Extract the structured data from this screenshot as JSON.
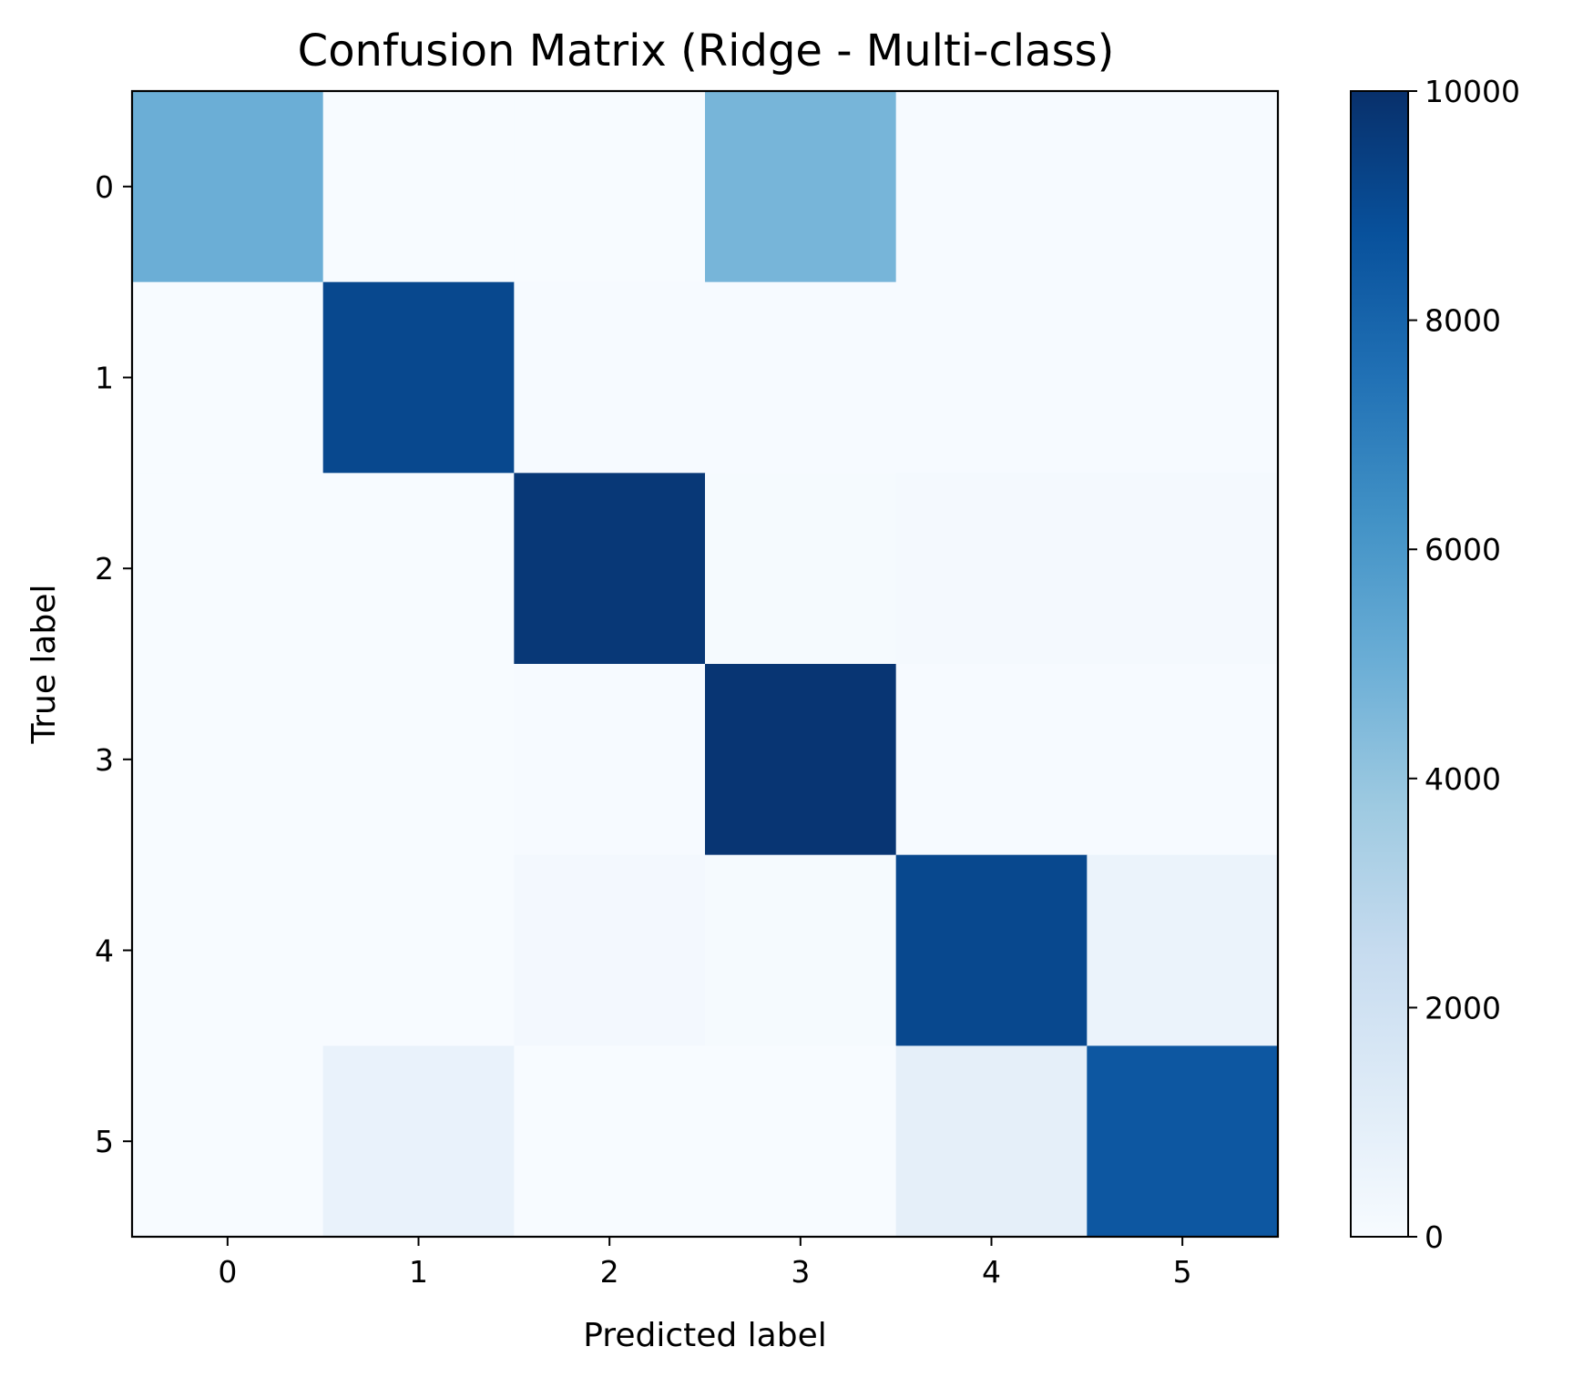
{
  "chart_data": {
    "type": "heatmap",
    "title": "Confusion Matrix (Ridge - Multi-class)",
    "xlabel": "Predicted label",
    "ylabel": "True label",
    "x_categories": [
      "0",
      "1",
      "2",
      "3",
      "4",
      "5"
    ],
    "y_categories": [
      "0",
      "1",
      "2",
      "3",
      "4",
      "5"
    ],
    "values": [
      [
        5000,
        0,
        0,
        4700,
        50,
        50
      ],
      [
        0,
        9100,
        50,
        50,
        50,
        50
      ],
      [
        0,
        0,
        9700,
        100,
        150,
        150
      ],
      [
        0,
        0,
        50,
        9800,
        50,
        50
      ],
      [
        0,
        0,
        200,
        100,
        9100,
        600
      ],
      [
        0,
        700,
        20,
        20,
        900,
        8500
      ]
    ],
    "colormap": "Blues",
    "colorbar": {
      "min": 0,
      "max": 10000,
      "ticks": [
        0,
        2000,
        4000,
        6000,
        8000,
        10000
      ],
      "tick_labels": [
        "0",
        "2000",
        "4000",
        "6000",
        "8000",
        "10000"
      ]
    },
    "grid": false,
    "legend": "colorbar-right"
  }
}
